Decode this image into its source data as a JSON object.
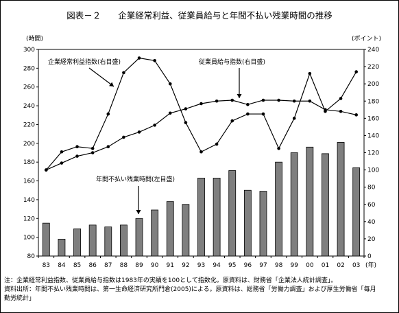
{
  "title": "図表－２　　企業経常利益、従業員給与と年間不払い残業時間の推移",
  "left_unit": "(時間)",
  "right_unit": "(ポイント)",
  "x_unit": "(年)",
  "notes": [
    "注：企業経常利益指数、従業員給与指数は1983年の実績を100として指数化。原資料は、財務省「企業法人統計調査」。",
    "資料出所：年間不払い残業時間は、第一生命経済研究所門倉(2005)による。原資料は、総務省「労働力調査」および厚生労働省「毎月",
    "勤労統計」"
  ],
  "chart_data": {
    "type": "bar+line",
    "categories": [
      "83",
      "84",
      "85",
      "86",
      "87",
      "88",
      "89",
      "90",
      "91",
      "92",
      "93",
      "94",
      "95",
      "96",
      "97",
      "98",
      "99",
      "00",
      "01",
      "02",
      "03"
    ],
    "left_axis": {
      "min": 80,
      "max": 300,
      "step": 20
    },
    "right_axis": {
      "min": 0,
      "max": 240,
      "step": 20
    },
    "series": [
      {
        "name": "年間不払い残業時間(左目盛)",
        "kind": "bar",
        "axis": "left",
        "values": [
          115,
          98,
          109,
          113,
          111,
          113,
          120,
          129,
          138,
          135,
          163,
          163,
          171,
          150,
          149,
          180,
          190,
          196,
          189,
          201,
          174
        ]
      },
      {
        "name": "企業経常利益指数(右目盛)",
        "kind": "line",
        "axis": "right",
        "values": [
          100,
          121,
          127,
          125,
          165,
          213,
          230,
          227,
          200,
          155,
          121,
          130,
          157,
          165,
          165,
          125,
          160,
          212,
          168,
          183,
          214
        ]
      },
      {
        "name": "従業員給与指数(右目盛)",
        "kind": "line",
        "axis": "right",
        "values": [
          100,
          108,
          116,
          120,
          127,
          138,
          144,
          152,
          166,
          171,
          177,
          180,
          181,
          176,
          181,
          181,
          180,
          180,
          170,
          168,
          164
        ]
      }
    ],
    "annotations": {
      "profit": "企業経常利益指数(右目盛)",
      "wage": "従業員給与指数(右目盛)",
      "overtime": "年間不払い残業時間(左目盛)"
    },
    "colors": {
      "bar": "#7f7f7f",
      "line": "#000000"
    }
  }
}
